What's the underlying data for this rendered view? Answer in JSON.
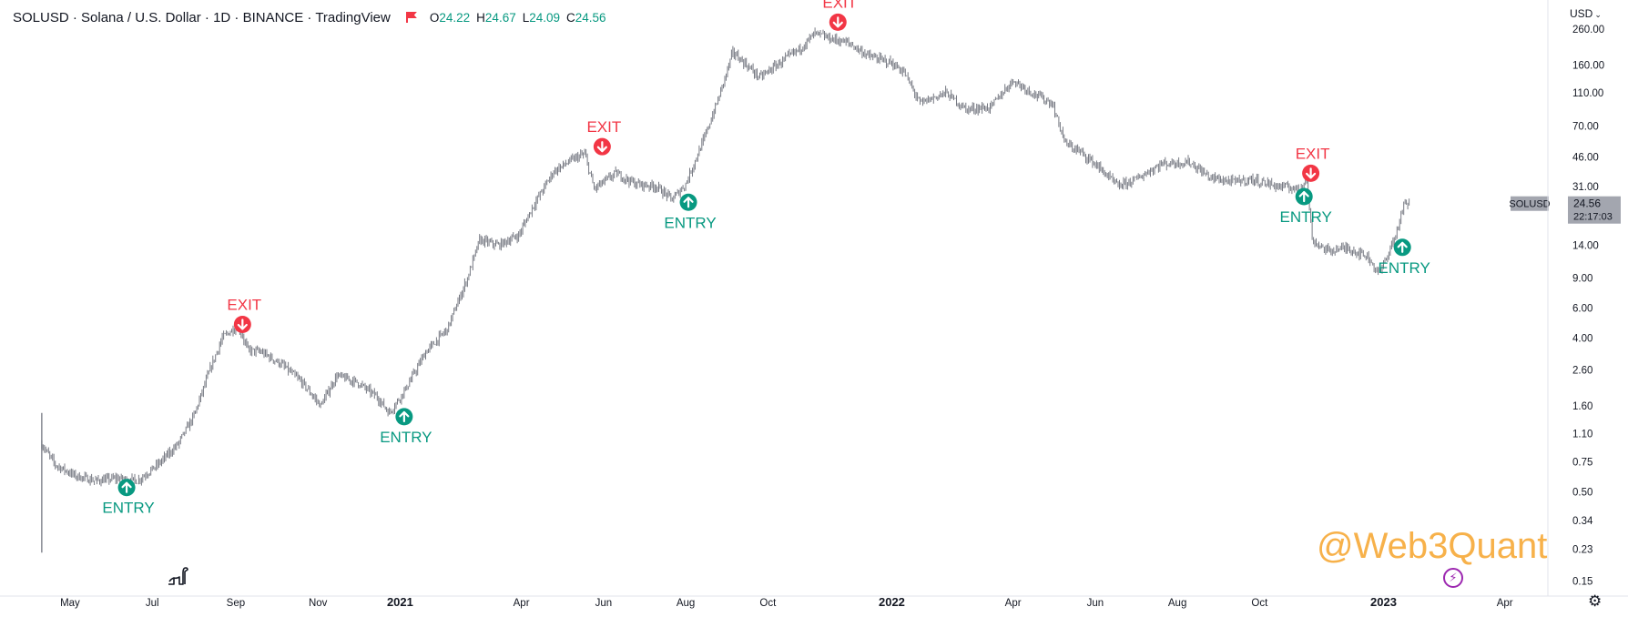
{
  "header": {
    "title": "SOLUSD · Solana / U.S. Dollar · 1D · BINANCE · TradingView",
    "ohlc": [
      {
        "key": "O",
        "value": "24.22"
      },
      {
        "key": "H",
        "value": "24.67"
      },
      {
        "key": "L",
        "value": "24.09"
      },
      {
        "key": "C",
        "value": "24.56"
      }
    ]
  },
  "currency_selector": "USD",
  "watermark": "@Web3Quant",
  "colors": {
    "candle": "#4a4e5a",
    "entry": "#089981",
    "exit": "#f23645",
    "price_label_bg": "#a3a6af",
    "watermark": "#f7b14a"
  },
  "chart_data": {
    "type": "candlestick",
    "price_scale": "log",
    "ylim": [
      0.13,
      340
    ],
    "y_ticks": [
      "260.00",
      "160.00",
      "110.00",
      "70.00",
      "46.00",
      "31.00",
      "14.00",
      "9.00",
      "6.00",
      "4.00",
      "2.60",
      "1.60",
      "1.10",
      "0.75",
      "0.50",
      "0.34",
      "0.23",
      "0.15"
    ],
    "x_ticks": [
      {
        "label": "May",
        "date": "2020-05-01",
        "bold": false
      },
      {
        "label": "Jul",
        "date": "2020-07-01",
        "bold": false
      },
      {
        "label": "Sep",
        "date": "2020-09-01",
        "bold": false
      },
      {
        "label": "Nov",
        "date": "2020-11-01",
        "bold": false
      },
      {
        "label": "2021",
        "date": "2021-01-01",
        "bold": true
      },
      {
        "label": "Apr",
        "date": "2021-04-01",
        "bold": false
      },
      {
        "label": "Jun",
        "date": "2021-06-01",
        "bold": false
      },
      {
        "label": "Aug",
        "date": "2021-08-01",
        "bold": false
      },
      {
        "label": "Oct",
        "date": "2021-10-01",
        "bold": false
      },
      {
        "label": "2022",
        "date": "2022-01-01",
        "bold": true
      },
      {
        "label": "Apr",
        "date": "2022-04-01",
        "bold": false
      },
      {
        "label": "Jun",
        "date": "2022-06-01",
        "bold": false
      },
      {
        "label": "Aug",
        "date": "2022-08-01",
        "bold": false
      },
      {
        "label": "Oct",
        "date": "2022-10-01",
        "bold": false
      },
      {
        "label": "2023",
        "date": "2023-01-01",
        "bold": true
      },
      {
        "label": "Apr",
        "date": "2023-04-01",
        "bold": false
      }
    ],
    "x_range": [
      "2020-03-10",
      "2023-05-03"
    ],
    "price_path": [
      {
        "date": "2020-04-10",
        "price": 0.95
      },
      {
        "date": "2020-04-20",
        "price": 0.72
      },
      {
        "date": "2020-05-05",
        "price": 0.62
      },
      {
        "date": "2020-05-20",
        "price": 0.58
      },
      {
        "date": "2020-06-05",
        "price": 0.6
      },
      {
        "date": "2020-06-20",
        "price": 0.58
      },
      {
        "date": "2020-07-05",
        "price": 0.72
      },
      {
        "date": "2020-07-20",
        "price": 0.95
      },
      {
        "date": "2020-08-01",
        "price": 1.4
      },
      {
        "date": "2020-08-12",
        "price": 2.5
      },
      {
        "date": "2020-08-22",
        "price": 4.0
      },
      {
        "date": "2020-08-30",
        "price": 4.5
      },
      {
        "date": "2020-09-03",
        "price": 4.7
      },
      {
        "date": "2020-09-10",
        "price": 3.4
      },
      {
        "date": "2020-09-20",
        "price": 3.3
      },
      {
        "date": "2020-10-05",
        "price": 2.8
      },
      {
        "date": "2020-10-20",
        "price": 2.2
      },
      {
        "date": "2020-11-03",
        "price": 1.6
      },
      {
        "date": "2020-11-15",
        "price": 2.4
      },
      {
        "date": "2020-11-30",
        "price": 2.2
      },
      {
        "date": "2020-12-15",
        "price": 1.8
      },
      {
        "date": "2020-12-24",
        "price": 1.45
      },
      {
        "date": "2021-01-05",
        "price": 2.0
      },
      {
        "date": "2021-01-20",
        "price": 3.3
      },
      {
        "date": "2021-02-05",
        "price": 4.5
      },
      {
        "date": "2021-02-20",
        "price": 9.0
      },
      {
        "date": "2021-03-01",
        "price": 15.0
      },
      {
        "date": "2021-03-15",
        "price": 14.0
      },
      {
        "date": "2021-03-30",
        "price": 16.0
      },
      {
        "date": "2021-04-10",
        "price": 24.0
      },
      {
        "date": "2021-04-25",
        "price": 38.0
      },
      {
        "date": "2021-05-10",
        "price": 45.0
      },
      {
        "date": "2021-05-18",
        "price": 48.0
      },
      {
        "date": "2021-05-25",
        "price": 30.0
      },
      {
        "date": "2021-06-10",
        "price": 37.0
      },
      {
        "date": "2021-06-25",
        "price": 32.0
      },
      {
        "date": "2021-07-10",
        "price": 31.0
      },
      {
        "date": "2021-07-22",
        "price": 26.0
      },
      {
        "date": "2021-08-01",
        "price": 32.0
      },
      {
        "date": "2021-08-15",
        "price": 60.0
      },
      {
        "date": "2021-08-25",
        "price": 100.0
      },
      {
        "date": "2021-09-05",
        "price": 190.0
      },
      {
        "date": "2021-09-15",
        "price": 160.0
      },
      {
        "date": "2021-09-25",
        "price": 135.0
      },
      {
        "date": "2021-10-10",
        "price": 165.0
      },
      {
        "date": "2021-10-25",
        "price": 200.0
      },
      {
        "date": "2021-11-05",
        "price": 245.0
      },
      {
        "date": "2021-11-15",
        "price": 230.0
      },
      {
        "date": "2021-11-30",
        "price": 215.0
      },
      {
        "date": "2021-12-15",
        "price": 180.0
      },
      {
        "date": "2021-12-31",
        "price": 165.0
      },
      {
        "date": "2022-01-10",
        "price": 145.0
      },
      {
        "date": "2022-01-22",
        "price": 95.0
      },
      {
        "date": "2022-02-10",
        "price": 110.0
      },
      {
        "date": "2022-02-25",
        "price": 88.0
      },
      {
        "date": "2022-03-15",
        "price": 90.0
      },
      {
        "date": "2022-04-01",
        "price": 130.0
      },
      {
        "date": "2022-04-15",
        "price": 110.0
      },
      {
        "date": "2022-04-30",
        "price": 95.0
      },
      {
        "date": "2022-05-10",
        "price": 55.0
      },
      {
        "date": "2022-05-20",
        "price": 50.0
      },
      {
        "date": "2022-06-01",
        "price": 42.0
      },
      {
        "date": "2022-06-18",
        "price": 31.0
      },
      {
        "date": "2022-07-01",
        "price": 34.0
      },
      {
        "date": "2022-07-20",
        "price": 42.0
      },
      {
        "date": "2022-08-10",
        "price": 43.0
      },
      {
        "date": "2022-08-25",
        "price": 35.0
      },
      {
        "date": "2022-09-10",
        "price": 33.0
      },
      {
        "date": "2022-09-25",
        "price": 34.0
      },
      {
        "date": "2022-10-15",
        "price": 31.0
      },
      {
        "date": "2022-10-31",
        "price": 30.0
      },
      {
        "date": "2022-11-05",
        "price": 36.0
      },
      {
        "date": "2022-11-09",
        "price": 15.0
      },
      {
        "date": "2022-11-20",
        "price": 13.0
      },
      {
        "date": "2022-12-05",
        "price": 13.5
      },
      {
        "date": "2022-12-20",
        "price": 12.0
      },
      {
        "date": "2022-12-29",
        "price": 9.5
      },
      {
        "date": "2023-01-10",
        "price": 16.0
      },
      {
        "date": "2023-01-16",
        "price": 24.0
      },
      {
        "date": "2023-01-20",
        "price": 24.56
      }
    ],
    "signals": [
      {
        "type": "entry",
        "label": "ENTRY",
        "date": "2020-06-12",
        "price": 0.53
      },
      {
        "type": "exit",
        "label": "EXIT",
        "date": "2020-09-06",
        "price": 4.8
      },
      {
        "type": "entry",
        "label": "ENTRY",
        "date": "2021-01-04",
        "price": 1.38
      },
      {
        "type": "exit",
        "label": "EXIT",
        "date": "2021-05-31",
        "price": 53.0
      },
      {
        "type": "entry",
        "label": "ENTRY",
        "date": "2021-08-03",
        "price": 25.0
      },
      {
        "type": "exit",
        "label": "EXIT",
        "date": "2021-11-22",
        "price": 285.0
      },
      {
        "type": "entry",
        "label": "ENTRY",
        "date": "2022-11-03",
        "price": 27.0
      },
      {
        "type": "exit",
        "label": "EXIT",
        "date": "2022-11-08",
        "price": 37.0
      },
      {
        "type": "entry",
        "label": "ENTRY",
        "date": "2023-01-15",
        "price": 13.6
      }
    ],
    "last_price": {
      "symbol": "SOLUSD",
      "price": "24.56",
      "countdown": "22:17:03",
      "value": 24.56
    }
  }
}
